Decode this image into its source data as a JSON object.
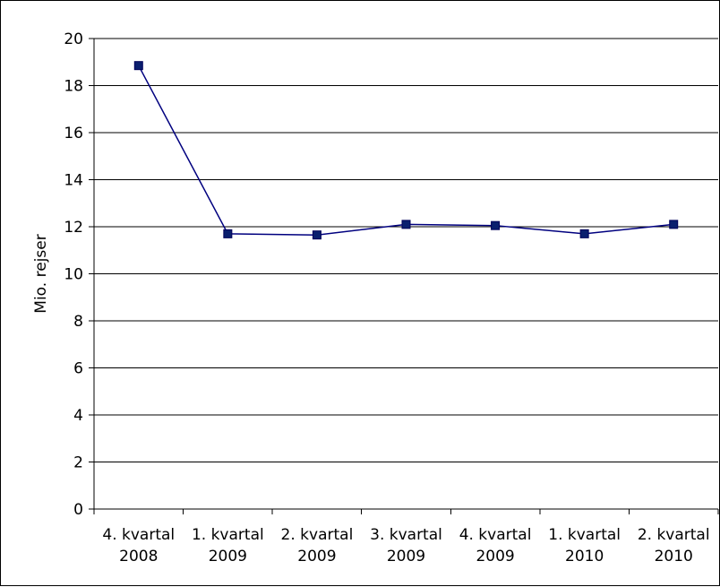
{
  "chart_data": {
    "type": "line",
    "title": "",
    "xlabel": "",
    "ylabel": "Mio. rejser",
    "ylim": [
      0,
      20
    ],
    "y_ticks": [
      "0",
      "2",
      "4",
      "6",
      "8",
      "10",
      "12",
      "14",
      "16",
      "18",
      "20"
    ],
    "grid": true,
    "legend": "none",
    "categories": [
      [
        "4. kvartal",
        "2008"
      ],
      [
        "1. kvartal",
        "2009"
      ],
      [
        "2. kvartal",
        "2009"
      ],
      [
        "3. kvartal",
        "2009"
      ],
      [
        "4. kvartal",
        "2009"
      ],
      [
        "1. kvartal",
        "2010"
      ],
      [
        "2. kvartal",
        "2010"
      ]
    ],
    "series": [
      {
        "values": [
          18.85,
          11.7,
          11.65,
          12.1,
          12.05,
          11.7,
          12.1
        ]
      }
    ],
    "colors": {
      "line": "#00007F",
      "marker_fill": "#0A1F6E",
      "marker_stroke": "#00005A",
      "grid": "#000000"
    }
  }
}
